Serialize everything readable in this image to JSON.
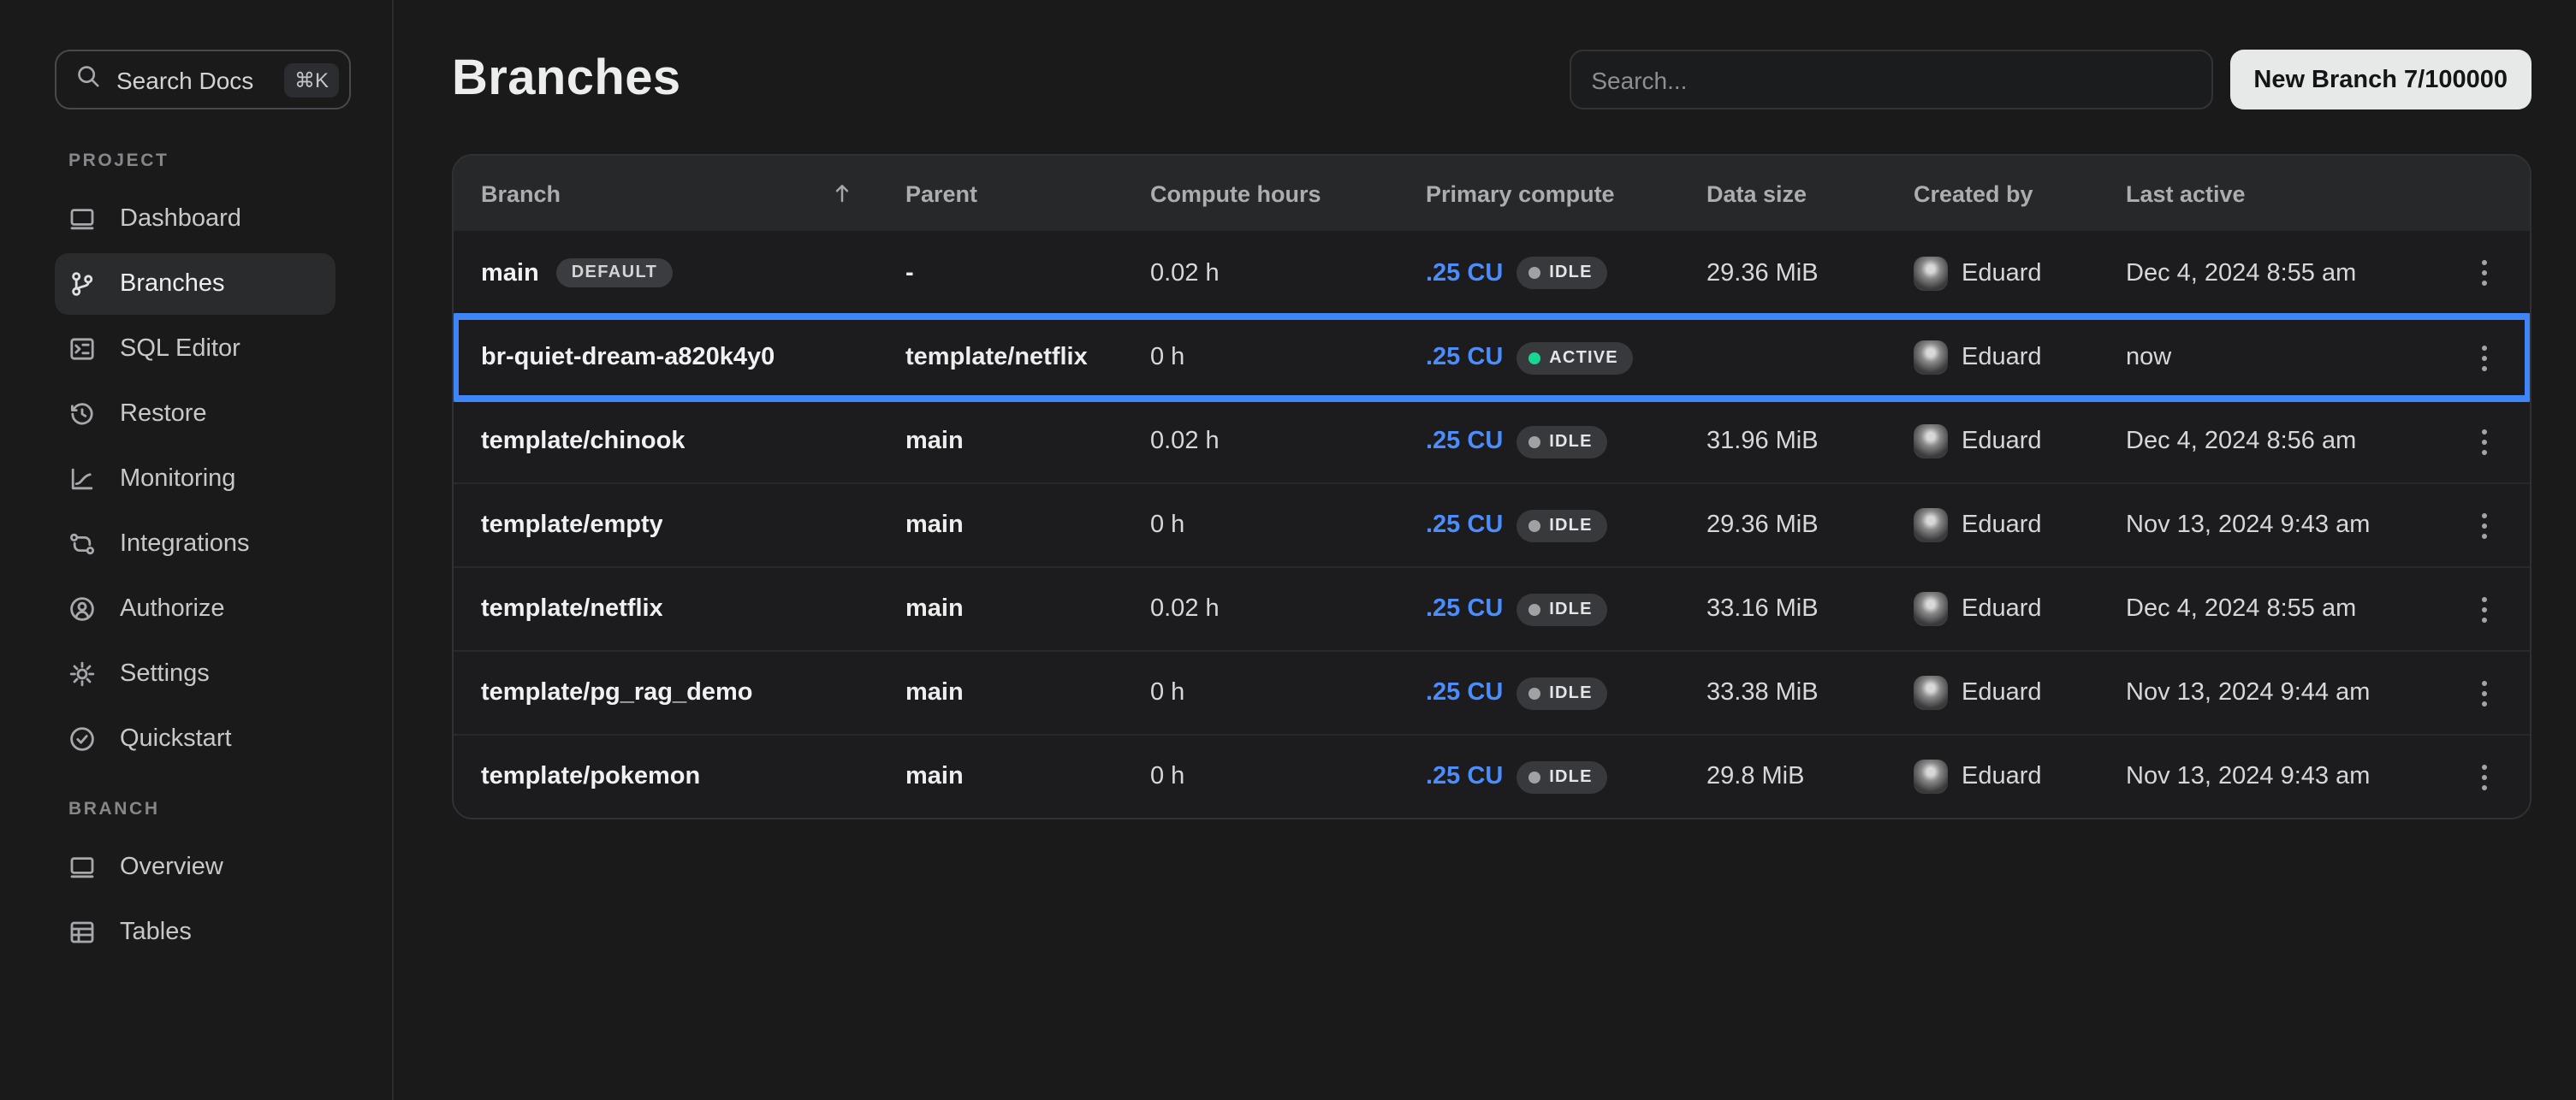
{
  "colors": {
    "accent_blue": "#3e86f7",
    "active_green": "#19d692",
    "idle_gray": "#9fa1a3"
  },
  "sidebar": {
    "search": {
      "label": "Search Docs",
      "shortcut": "⌘K"
    },
    "sections": [
      {
        "label": "PROJECT",
        "items": [
          {
            "label": "Dashboard",
            "icon": "dashboard",
            "active": false
          },
          {
            "label": "Branches",
            "icon": "branches",
            "active": true
          },
          {
            "label": "SQL Editor",
            "icon": "sql-editor",
            "active": false
          },
          {
            "label": "Restore",
            "icon": "restore",
            "active": false
          },
          {
            "label": "Monitoring",
            "icon": "monitoring",
            "active": false
          },
          {
            "label": "Integrations",
            "icon": "integrations",
            "active": false
          },
          {
            "label": "Authorize",
            "icon": "authorize",
            "active": false
          },
          {
            "label": "Settings",
            "icon": "settings",
            "active": false
          },
          {
            "label": "Quickstart",
            "icon": "quickstart",
            "active": false
          }
        ]
      },
      {
        "label": "BRANCH",
        "items": [
          {
            "label": "Overview",
            "icon": "overview",
            "active": false
          },
          {
            "label": "Tables",
            "icon": "tables",
            "active": false
          }
        ]
      }
    ]
  },
  "header": {
    "title": "Branches",
    "search_placeholder": "Search...",
    "new_branch_label": "New Branch 7/100000"
  },
  "table": {
    "columns": [
      "Branch",
      "Parent",
      "Compute hours",
      "Primary compute",
      "Data size",
      "Created by",
      "Last active"
    ],
    "sort_column": "Branch",
    "rows": [
      {
        "branch": "main",
        "badge": "DEFAULT",
        "parent": "-",
        "compute_hours": "0.02 h",
        "compute": ".25 CU",
        "status": "IDLE",
        "data_size": "29.36 MiB",
        "created_by": "Eduard",
        "last_active": "Dec 4, 2024 8:55 am",
        "highlighted": false
      },
      {
        "branch": "br-quiet-dream-a820k4y0",
        "badge": "",
        "parent": "template/netflix",
        "compute_hours": "0 h",
        "compute": ".25 CU",
        "status": "ACTIVE",
        "data_size": "",
        "created_by": "Eduard",
        "last_active": "now",
        "highlighted": true
      },
      {
        "branch": "template/chinook",
        "badge": "",
        "parent": "main",
        "compute_hours": "0.02 h",
        "compute": ".25 CU",
        "status": "IDLE",
        "data_size": "31.96 MiB",
        "created_by": "Eduard",
        "last_active": "Dec 4, 2024 8:56 am",
        "highlighted": false
      },
      {
        "branch": "template/empty",
        "badge": "",
        "parent": "main",
        "compute_hours": "0 h",
        "compute": ".25 CU",
        "status": "IDLE",
        "data_size": "29.36 MiB",
        "created_by": "Eduard",
        "last_active": "Nov 13, 2024 9:43 am",
        "highlighted": false
      },
      {
        "branch": "template/netflix",
        "badge": "",
        "parent": "main",
        "compute_hours": "0.02 h",
        "compute": ".25 CU",
        "status": "IDLE",
        "data_size": "33.16 MiB",
        "created_by": "Eduard",
        "last_active": "Dec 4, 2024 8:55 am",
        "highlighted": false
      },
      {
        "branch": "template/pg_rag_demo",
        "badge": "",
        "parent": "main",
        "compute_hours": "0 h",
        "compute": ".25 CU",
        "status": "IDLE",
        "data_size": "33.38 MiB",
        "created_by": "Eduard",
        "last_active": "Nov 13, 2024 9:44 am",
        "highlighted": false
      },
      {
        "branch": "template/pokemon",
        "badge": "",
        "parent": "main",
        "compute_hours": "0 h",
        "compute": ".25 CU",
        "status": "IDLE",
        "data_size": "29.8 MiB",
        "created_by": "Eduard",
        "last_active": "Nov 13, 2024 9:43 am",
        "highlighted": false
      }
    ]
  }
}
